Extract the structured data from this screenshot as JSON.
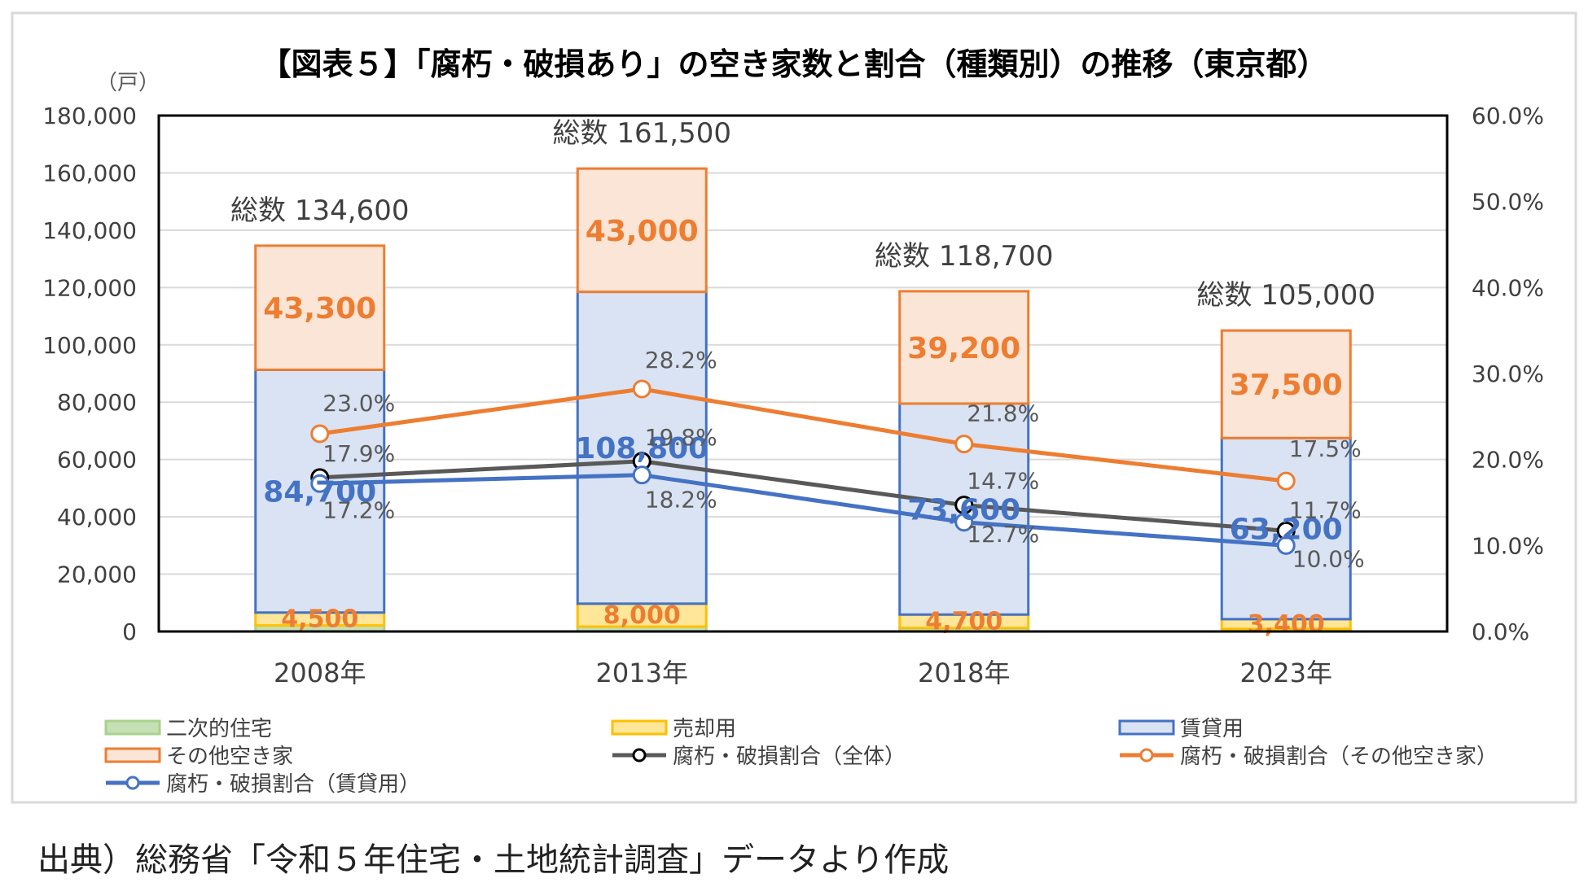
{
  "chart_data": {
    "type": "bar",
    "title": "【図表５】「腐朽・破損あり」の空き家数と割合（種類別）の推移（東京都）",
    "y_unit_label": "（戸）",
    "categories": [
      "2008年",
      "2013年",
      "2018年",
      "2023年"
    ],
    "ylim": [
      0,
      180000
    ],
    "y_ticks": [
      "0",
      "20,000",
      "40,000",
      "60,000",
      "80,000",
      "100,000",
      "120,000",
      "140,000",
      "160,000",
      "180,000"
    ],
    "y2lim": [
      0,
      60
    ],
    "y2_ticks": [
      "0.0%",
      "10.0%",
      "20.0%",
      "30.0%",
      "40.0%",
      "50.0%",
      "60.0%"
    ],
    "grid": true,
    "legend_position": "bottom",
    "totals": [
      {
        "label": "総数 134,600",
        "value": 134600
      },
      {
        "label": "総数 161,500",
        "value": 161500
      },
      {
        "label": "総数 118,700",
        "value": 118700
      },
      {
        "label": "総数 105,000",
        "value": 105000
      }
    ],
    "bar_series": [
      {
        "name": "二次的住宅",
        "color": "#a9d18e",
        "fill": "#c5e0b4",
        "values": [
          2100,
          1700,
          1200,
          900
        ],
        "labels": [
          "",
          "",
          "",
          ""
        ],
        "label_color": ""
      },
      {
        "name": "売却用",
        "color": "#ffc000",
        "fill": "#ffe699",
        "values": [
          4500,
          8000,
          4700,
          3400
        ],
        "labels": [
          "4,500",
          "8,000",
          "4,700",
          "3,400"
        ],
        "label_color": "#ed7d31"
      },
      {
        "name": "賃貸用",
        "color": "#4472c4",
        "fill": "#dae3f3",
        "values": [
          84700,
          108800,
          73600,
          63200
        ],
        "labels": [
          "84,700",
          "108,800",
          "73,600",
          "63,200"
        ],
        "label_color": "#4472c4"
      },
      {
        "name": "その他空き家",
        "color": "#ed7d31",
        "fill": "#fbe5d6",
        "values": [
          43300,
          43000,
          39200,
          37500
        ],
        "labels": [
          "43,300",
          "43,000",
          "39,200",
          "37,500"
        ],
        "label_color": "#ed7d31"
      }
    ],
    "line_series": [
      {
        "name": "腐朽・破損割合（全体）",
        "color": "#595959",
        "marker_stroke": "#000000",
        "values": [
          17.9,
          19.8,
          14.7,
          11.7
        ],
        "labels": [
          "17.9%",
          "19.8%",
          "14.7%",
          "11.7%"
        ]
      },
      {
        "name": "腐朽・破損割合（その他空き家）",
        "color": "#ed7d31",
        "marker_stroke": "#ed7d31",
        "values": [
          23.0,
          28.2,
          21.8,
          17.5
        ],
        "labels": [
          "23.0%",
          "28.2%",
          "21.8%",
          "17.5%"
        ]
      },
      {
        "name": "腐朽・破損割合（賃貸用）",
        "color": "#4472c4",
        "marker_stroke": "#4472c4",
        "values": [
          17.2,
          18.2,
          12.7,
          10.0
        ],
        "labels": [
          "17.2%",
          "18.2%",
          "12.7%",
          "10.0%"
        ]
      }
    ],
    "legend": [
      {
        "name": "二次的住宅",
        "kind": "bar",
        "fill": "#c5e0b4",
        "color": "#a9d18e"
      },
      {
        "name": "売却用",
        "kind": "bar",
        "fill": "#ffe699",
        "color": "#ffc000"
      },
      {
        "name": "賃貸用",
        "kind": "bar",
        "fill": "#dae3f3",
        "color": "#4472c4"
      },
      {
        "name": "その他空き家",
        "kind": "bar",
        "fill": "#fbe5d6",
        "color": "#ed7d31"
      },
      {
        "name": "腐朽・破損割合（全体）",
        "kind": "line",
        "color": "#595959",
        "marker_stroke": "#000000"
      },
      {
        "name": "腐朽・破損割合（その他空き家）",
        "kind": "line",
        "color": "#ed7d31",
        "marker_stroke": "#ed7d31"
      },
      {
        "name": "腐朽・破損割合（賃貸用）",
        "kind": "line",
        "color": "#4472c4",
        "marker_stroke": "#4472c4"
      }
    ]
  },
  "source_note": "出典）総務省「令和５年住宅・土地統計調査」データより作成"
}
